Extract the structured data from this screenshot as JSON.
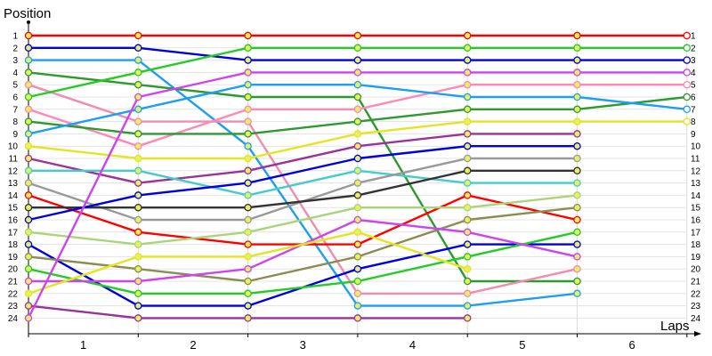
{
  "chart_data": {
    "type": "line",
    "title": "",
    "ylabel": "Position",
    "xlabel": "Laps",
    "x_tick_labels": [
      "1",
      "2",
      "3",
      "4",
      "5",
      "6"
    ],
    "y_tick_labels": [
      "1",
      "2",
      "3",
      "4",
      "5",
      "6",
      "7",
      "8",
      "9",
      "10",
      "11",
      "12",
      "13",
      "14",
      "15",
      "16",
      "17",
      "18",
      "19",
      "20",
      "21",
      "22",
      "23",
      "24"
    ],
    "ylim": [
      1,
      24
    ],
    "y_inverted": true,
    "grid": true,
    "legend": "none",
    "x": [
      0,
      1,
      2,
      3,
      4,
      5,
      6
    ],
    "series": [
      {
        "color": "#ff0000",
        "values": [
          1,
          1,
          1,
          1,
          1,
          1,
          1
        ]
      },
      {
        "color": "#0000dd",
        "values": [
          2,
          2,
          3,
          3,
          3,
          3,
          3
        ]
      },
      {
        "color": "#1e9ef0",
        "values": [
          3,
          3,
          10,
          23,
          23,
          22,
          null
        ]
      },
      {
        "color": "#2e9a2e",
        "values": [
          4,
          5,
          6,
          6,
          21,
          21,
          null
        ]
      },
      {
        "color": "#f08cb0",
        "values": [
          5,
          8,
          8,
          22,
          22,
          20,
          null
        ]
      },
      {
        "color": "#22cc22",
        "values": [
          6,
          4,
          2,
          2,
          2,
          2,
          2
        ]
      },
      {
        "color": "#ff88b4",
        "values": [
          7,
          10,
          7,
          7,
          5,
          5,
          5
        ]
      },
      {
        "color": "#2e9a2e",
        "values": [
          8,
          9,
          9,
          8,
          7,
          7,
          6
        ]
      },
      {
        "color": "#1e9ef0",
        "values": [
          9,
          7,
          5,
          5,
          6,
          6,
          7
        ]
      },
      {
        "color": "#e4e422",
        "values": [
          10,
          11,
          11,
          9,
          8,
          8,
          8
        ]
      },
      {
        "color": "#993399",
        "values": [
          11,
          13,
          12,
          10,
          9,
          9,
          null
        ]
      },
      {
        "color": "#44cccc",
        "values": [
          12,
          12,
          14,
          12,
          13,
          13,
          null
        ]
      },
      {
        "color": "#999999",
        "values": [
          13,
          16,
          16,
          13,
          11,
          11,
          null
        ]
      },
      {
        "color": "#ff0000",
        "values": [
          14,
          17,
          18,
          18,
          14,
          16,
          null
        ]
      },
      {
        "color": "#333333",
        "values": [
          15,
          15,
          15,
          14,
          12,
          12,
          null
        ]
      },
      {
        "color": "#0000dd",
        "values": [
          16,
          14,
          13,
          11,
          10,
          10,
          null
        ]
      },
      {
        "color": "#aad47a",
        "values": [
          17,
          18,
          17,
          15,
          15,
          14,
          null
        ]
      },
      {
        "color": "#0000dd",
        "values": [
          18,
          23,
          23,
          20,
          18,
          18,
          null
        ]
      },
      {
        "color": "#8c8c50",
        "values": [
          19,
          20,
          21,
          19,
          16,
          15,
          null
        ]
      },
      {
        "color": "#22cc22",
        "values": [
          20,
          22,
          22,
          21,
          19,
          17,
          null
        ]
      },
      {
        "color": "#cc44ee",
        "values": [
          21,
          21,
          20,
          16,
          17,
          19,
          null
        ]
      },
      {
        "color": "#e4e422",
        "values": [
          22,
          19,
          19,
          17,
          20,
          null,
          null
        ]
      },
      {
        "color": "#993399",
        "values": [
          23,
          24,
          24,
          24,
          24,
          null,
          null
        ]
      },
      {
        "color": "#cc44ee",
        "values": [
          24,
          6,
          4,
          4,
          4,
          4,
          4
        ]
      }
    ]
  }
}
